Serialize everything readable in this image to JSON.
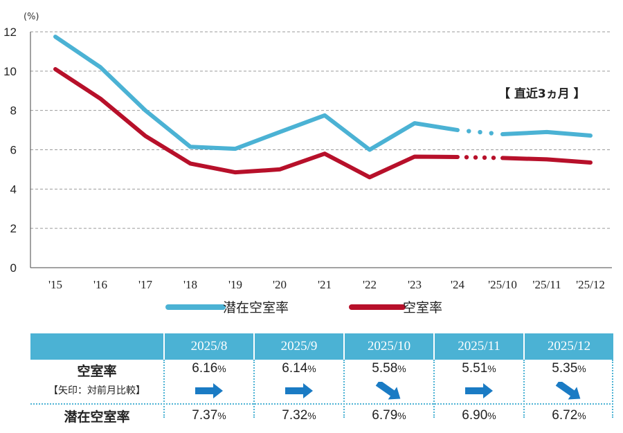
{
  "chart_data": {
    "type": "line",
    "unit_label": "(%)",
    "categories": [
      "'15",
      "'16",
      "'17",
      "'18",
      "'19",
      "'20",
      "'21",
      "'22",
      "'23",
      "'24",
      "'25/10",
      "'25/11",
      "'25/12"
    ],
    "yticks": [
      "0",
      "2",
      "4",
      "6",
      "8",
      "10",
      "12"
    ],
    "ylim": [
      0,
      12
    ],
    "grid": true,
    "series": [
      {
        "name": "潜在空室率",
        "color": "#4bb2d4",
        "values": [
          11.75,
          10.2,
          8.0,
          6.15,
          6.05,
          6.9,
          7.75,
          6.0,
          7.35,
          7.0,
          6.79,
          6.9,
          6.72
        ]
      },
      {
        "name": "空室率",
        "color": "#b7102a",
        "values": [
          10.1,
          8.6,
          6.7,
          5.3,
          4.85,
          5.0,
          5.8,
          4.6,
          5.65,
          5.63,
          5.58,
          5.51,
          5.35
        ]
      }
    ],
    "annotation": "【 直近3ヵ月 】",
    "legend_position": "bottom"
  },
  "table": {
    "columns": [
      "2025/8",
      "2025/9",
      "2025/10",
      "2025/11",
      "2025/12"
    ],
    "row1_label": "空室率",
    "row2_label": "【矢印：対前月比較】",
    "row3_label": "潜在空室率",
    "vacancy": [
      "6.16",
      "6.14",
      "5.58",
      "5.51",
      "5.35"
    ],
    "arrows": [
      "right",
      "right",
      "down-right",
      "right",
      "down-right"
    ],
    "potential": [
      "7.37",
      "7.32",
      "6.79",
      "6.90",
      "6.72"
    ],
    "pct": "%"
  }
}
